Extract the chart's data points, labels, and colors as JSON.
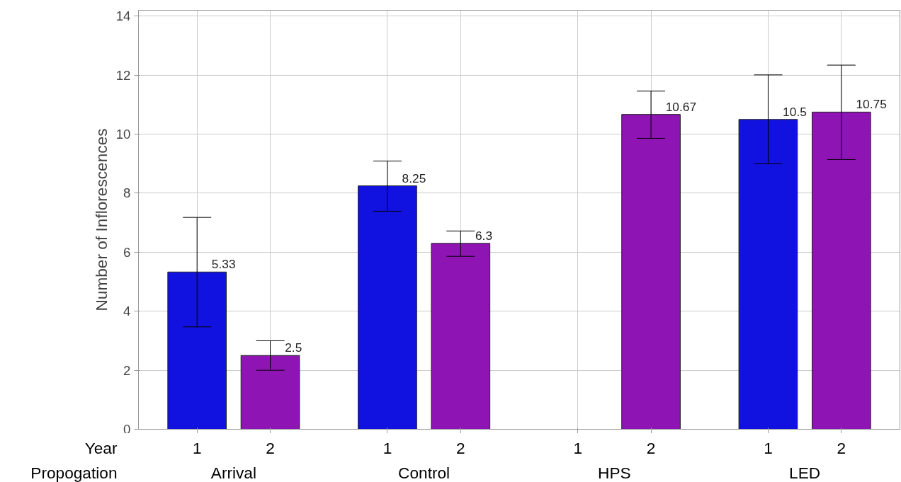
{
  "chart_data": {
    "type": "bar",
    "categories": [
      "1",
      "2",
      "1",
      "2",
      "1",
      "2",
      "1",
      "2"
    ],
    "series": [
      {
        "colors": [
          "#1212e0",
          "#8e14b4",
          "#1212e0",
          "#8e14b4",
          "#1212e0",
          "#8e14b4",
          "#1212e0",
          "#8e14b4"
        ],
        "values": [
          5.33,
          2.5,
          8.25,
          6.3,
          null,
          10.67,
          10.5,
          10.75
        ],
        "errors": [
          [
            3.47,
            7.18
          ],
          [
            2.0,
            3.0
          ],
          [
            7.39,
            9.09
          ],
          [
            5.86,
            6.72
          ],
          null,
          [
            9.86,
            11.46
          ],
          [
            9.0,
            12.01
          ],
          [
            9.14,
            12.34
          ]
        ]
      }
    ],
    "ylabel": "Number of Inflorescences",
    "xlabel": "Year",
    "annotations": [
      "Propogation",
      "Arrival",
      "Control",
      "HPS",
      "LED"
    ],
    "ylim": [
      0,
      14.2
    ],
    "yticks": [
      0,
      2,
      4,
      6,
      8,
      10,
      12,
      14
    ],
    "data_labels": true,
    "grid": true
  }
}
